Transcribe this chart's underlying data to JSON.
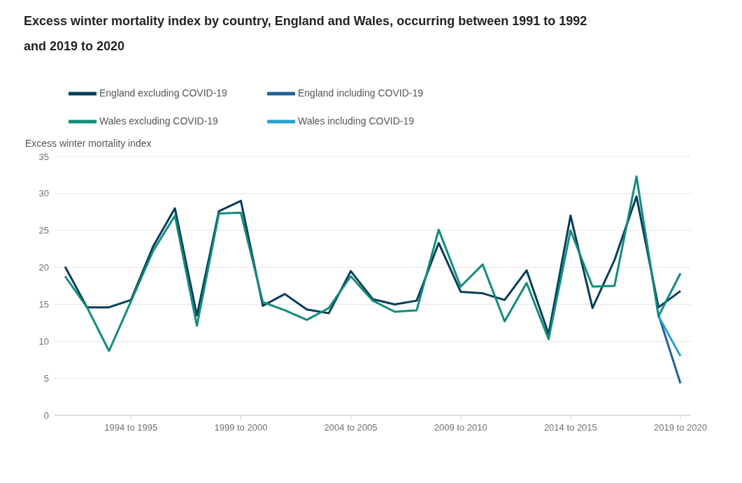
{
  "chart_data": {
    "type": "line",
    "title": "Excess winter mortality index by country, England and Wales, occurring between 1991 to 1992 and 2019 to 2020",
    "ylabel": "Excess winter mortality index",
    "categories": [
      null,
      null,
      null,
      "1994 to 1995",
      null,
      null,
      null,
      null,
      "1999 to 2000",
      null,
      null,
      null,
      null,
      "2004 to 2005",
      null,
      null,
      null,
      null,
      "2009 to 2010",
      null,
      null,
      null,
      null,
      "2014 to 2015",
      null,
      null,
      null,
      null,
      "2019 to 2020"
    ],
    "series": [
      {
        "name": "England including COVID-19",
        "color": "#206095",
        "values": [
          null,
          null,
          null,
          null,
          null,
          null,
          null,
          null,
          null,
          null,
          null,
          null,
          null,
          null,
          null,
          null,
          null,
          null,
          null,
          null,
          null,
          null,
          null,
          null,
          null,
          null,
          null,
          13.6,
          4.3
        ]
      },
      {
        "name": "Wales including COVID-19",
        "color": "#27a0cc",
        "values": [
          null,
          null,
          null,
          null,
          null,
          null,
          null,
          null,
          null,
          null,
          null,
          null,
          null,
          null,
          null,
          null,
          null,
          null,
          null,
          null,
          null,
          null,
          null,
          null,
          null,
          null,
          null,
          13.4,
          8.0
        ]
      },
      {
        "name": "England excluding COVID-19",
        "color": "#003c57",
        "values": [
          20.1,
          14.6,
          14.6,
          15.6,
          22.8,
          28.0,
          13.5,
          27.6,
          29.0,
          14.8,
          16.4,
          14.3,
          13.8,
          19.5,
          15.7,
          15.0,
          15.5,
          23.3,
          16.7,
          16.5,
          15.6,
          19.6,
          11.0,
          27.0,
          14.5,
          21.0,
          29.6,
          14.6,
          16.8
        ]
      },
      {
        "name": "Wales excluding COVID-19",
        "color": "#118c7b",
        "values": [
          18.8,
          14.6,
          8.7,
          15.4,
          22.2,
          27.0,
          12.1,
          27.3,
          27.4,
          15.3,
          14.2,
          12.9,
          14.5,
          18.8,
          15.5,
          14.0,
          14.2,
          25.1,
          17.4,
          20.4,
          12.7,
          17.9,
          10.3,
          25.0,
          17.4,
          17.5,
          32.3,
          13.4,
          19.2
        ]
      }
    ],
    "ylim": [
      0,
      35
    ],
    "yticks": [
      0,
      5,
      10,
      15,
      20,
      25,
      30,
      35
    ],
    "grid": "y",
    "legend": "top left",
    "marker": "none",
    "line_style": "solid"
  }
}
